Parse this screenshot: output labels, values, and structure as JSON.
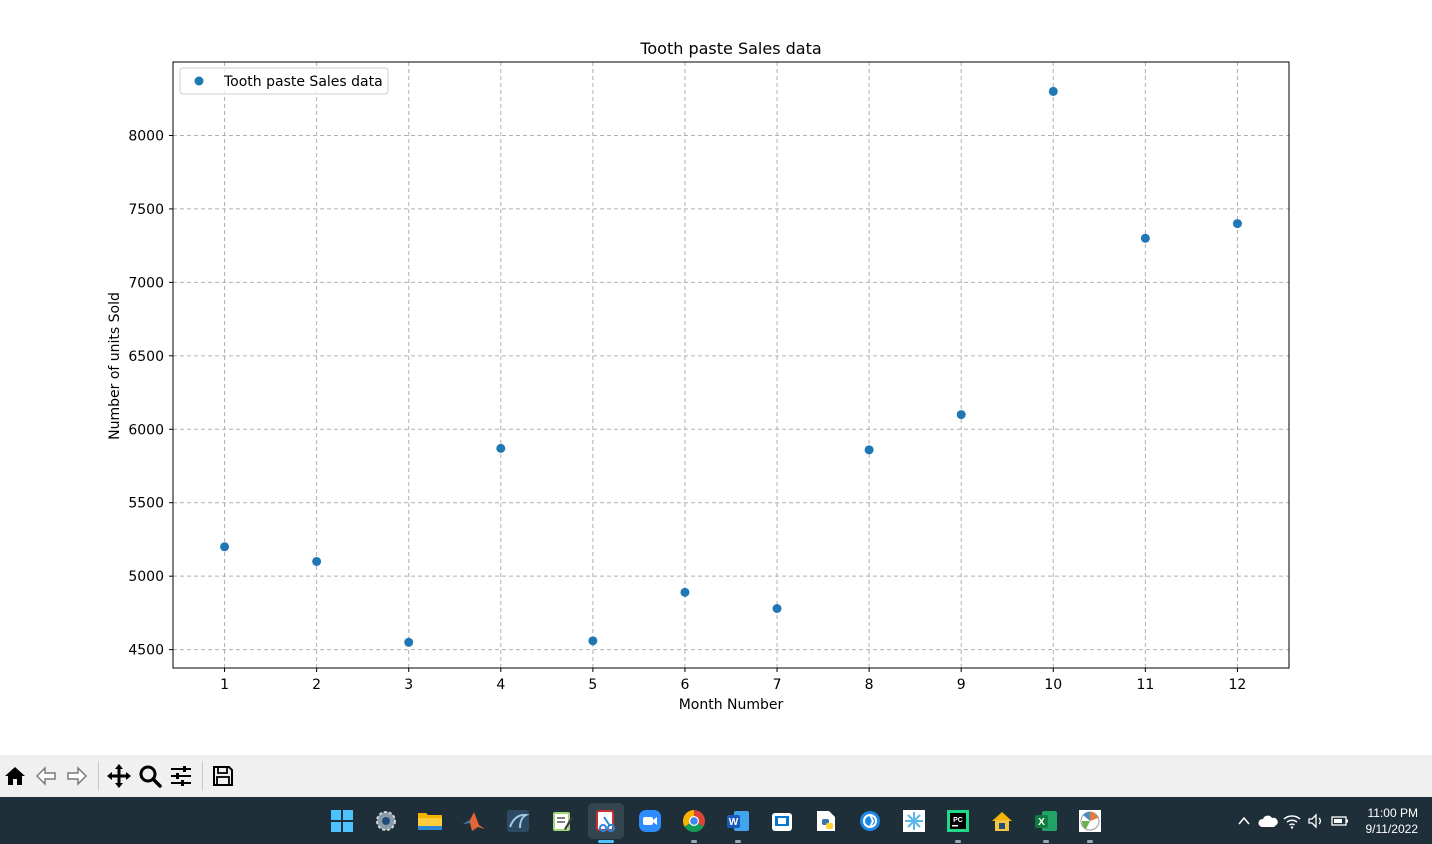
{
  "chart_data": {
    "type": "scatter",
    "title": "Tooth paste Sales data",
    "xlabel": "Month Number",
    "ylabel": "Number of units Sold",
    "x": [
      1,
      2,
      3,
      4,
      5,
      6,
      7,
      8,
      9,
      10,
      11,
      12
    ],
    "series": [
      {
        "name": "Tooth paste Sales data",
        "color": "#1f77b4",
        "values": [
          5200,
          5100,
          4550,
          5870,
          4560,
          4890,
          4780,
          5860,
          6100,
          8300,
          7300,
          7400
        ]
      }
    ],
    "xticks": [
      "1",
      "2",
      "3",
      "4",
      "5",
      "6",
      "7",
      "8",
      "9",
      "10",
      "11",
      "12"
    ],
    "yticks": [
      "4500",
      "5000",
      "5500",
      "6000",
      "6500",
      "7000",
      "7500",
      "8000"
    ],
    "xlim": [
      0.44,
      12.56
    ],
    "ylim": [
      4375,
      8500
    ],
    "grid": true,
    "grid_style": "dashed",
    "legend_position": "upper-left"
  },
  "toolbar": {
    "buttons": [
      {
        "name": "home-button",
        "icon": "home-icon"
      },
      {
        "name": "back-button",
        "icon": "arrow-left-icon"
      },
      {
        "name": "forward-button",
        "icon": "arrow-right-icon"
      },
      {
        "name": "pan-button",
        "icon": "move-icon"
      },
      {
        "name": "zoom-button",
        "icon": "magnifier-icon"
      },
      {
        "name": "configure-subplots-button",
        "icon": "sliders-icon"
      },
      {
        "name": "save-figure-button",
        "icon": "floppy-disk-icon"
      }
    ]
  },
  "taskbar": {
    "apps": [
      {
        "name": "start-button",
        "icon": "windows-logo-icon"
      },
      {
        "name": "taskbar-settings",
        "icon": "gear-icon"
      },
      {
        "name": "taskbar-file-explorer",
        "icon": "folder-icon"
      },
      {
        "name": "taskbar-matlab",
        "icon": "matlab-icon"
      },
      {
        "name": "taskbar-mysql-workbench",
        "icon": "dolphin-icon"
      },
      {
        "name": "taskbar-notepad",
        "icon": "notepad-icon"
      },
      {
        "name": "taskbar-snipping-tool",
        "icon": "scissors-icon",
        "active": true
      },
      {
        "name": "taskbar-zoom",
        "icon": "video-camera-icon"
      },
      {
        "name": "taskbar-chrome",
        "icon": "chrome-icon"
      },
      {
        "name": "taskbar-word",
        "icon": "word-icon"
      },
      {
        "name": "taskbar-store",
        "icon": "bag-icon"
      },
      {
        "name": "taskbar-python-idle",
        "icon": "python-icon"
      },
      {
        "name": "taskbar-browser",
        "icon": "globe-icon"
      },
      {
        "name": "taskbar-snowflake",
        "icon": "snowflake-icon"
      },
      {
        "name": "taskbar-pycharm",
        "icon": "pycharm-icon"
      },
      {
        "name": "taskbar-vpn",
        "icon": "lock-house-icon"
      },
      {
        "name": "taskbar-excel",
        "icon": "excel-icon"
      },
      {
        "name": "taskbar-matplotlib-figure",
        "icon": "figure-icon"
      }
    ],
    "clock": {
      "time": "11:00 PM",
      "date": "9/11/2022"
    }
  }
}
